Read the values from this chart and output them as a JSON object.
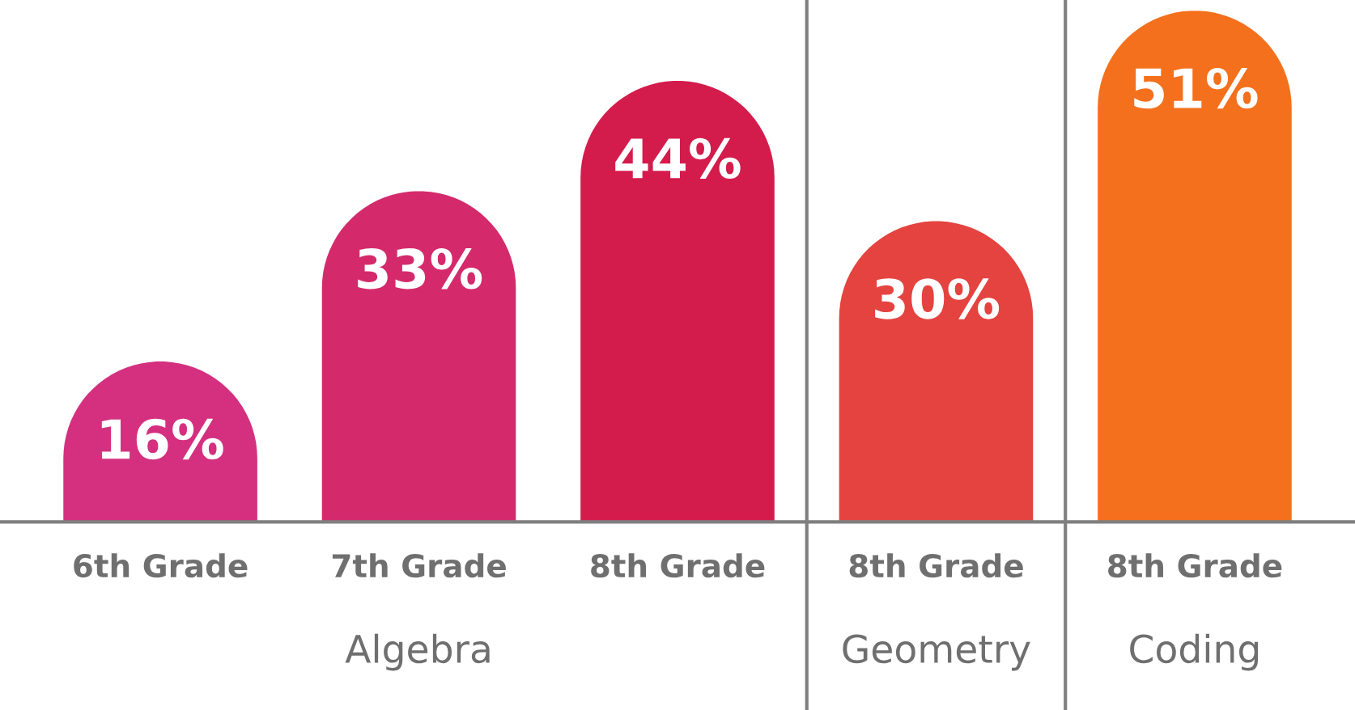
{
  "chart_data": {
    "type": "bar",
    "categories": [
      "6th Grade",
      "7th Grade",
      "8th Grade",
      "8th Grade",
      "8th Grade"
    ],
    "values": [
      16,
      33,
      44,
      30,
      51
    ],
    "colors": [
      "#d4307f",
      "#d42a6c",
      "#d41c4c",
      "#e4433f",
      "#f4701c"
    ],
    "value_labels": [
      "16%",
      "33%",
      "44%",
      "30%",
      "51%"
    ],
    "annotations": [
      "Algebra",
      "Geometry",
      "Coding"
    ]
  }
}
